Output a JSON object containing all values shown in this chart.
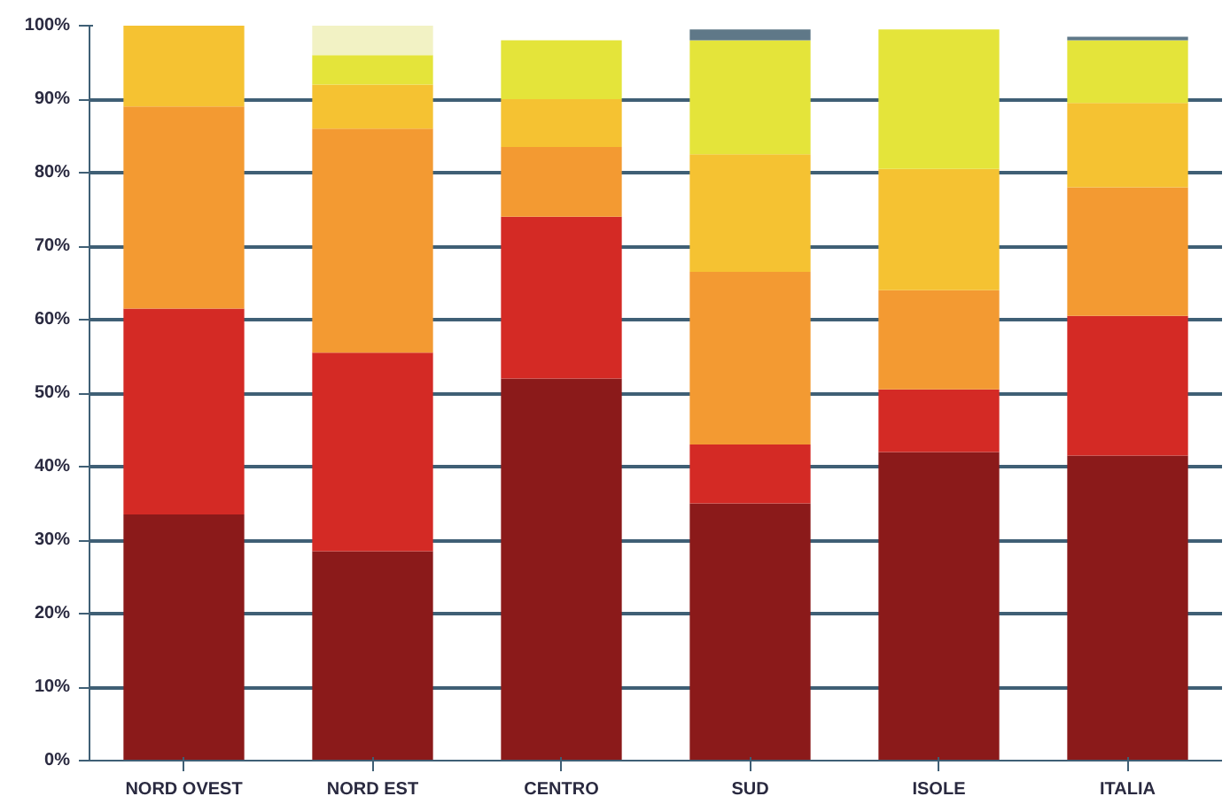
{
  "chart_data": {
    "type": "bar",
    "stacked": true,
    "categories": [
      "NORD OVEST",
      "NORD EST",
      "CENTRO",
      "SUD",
      "ISOLE",
      "ITALIA"
    ],
    "series": [
      {
        "color": "#8b1a1a",
        "values": [
          33.5,
          28.5,
          52,
          35,
          42,
          41.5
        ]
      },
      {
        "color": "#d42a25",
        "values": [
          28,
          27,
          22,
          8,
          8.5,
          19
        ]
      },
      {
        "color": "#f39a32",
        "values": [
          27.5,
          30.5,
          9.5,
          23.5,
          13.5,
          17.5
        ]
      },
      {
        "color": "#f5c232",
        "values": [
          11,
          6,
          6.5,
          16,
          16.5,
          11.5
        ]
      },
      {
        "color": "#e4e43a",
        "values": [
          null,
          4,
          8,
          15.5,
          19,
          8.5
        ]
      },
      {
        "color": "#f2f2c4",
        "values": [
          null,
          4,
          null,
          null,
          null,
          null
        ]
      },
      {
        "color": "#5f7888",
        "values": [
          null,
          null,
          null,
          1.5,
          null,
          0.5
        ]
      }
    ],
    "ylim": [
      0,
      100
    ],
    "yticks": [
      {
        "value": 0,
        "label": "0%"
      },
      {
        "value": 10,
        "label": "10%"
      },
      {
        "value": 20,
        "label": "20%"
      },
      {
        "value": 30,
        "label": "30%"
      },
      {
        "value": 40,
        "label": "40%"
      },
      {
        "value": 50,
        "label": "50%"
      },
      {
        "value": 60,
        "label": "60%"
      },
      {
        "value": 70,
        "label": "70%"
      },
      {
        "value": 80,
        "label": "80%"
      },
      {
        "value": 90,
        "label": "90%"
      },
      {
        "value": 100,
        "label": "100%"
      }
    ],
    "grid": "y"
  }
}
